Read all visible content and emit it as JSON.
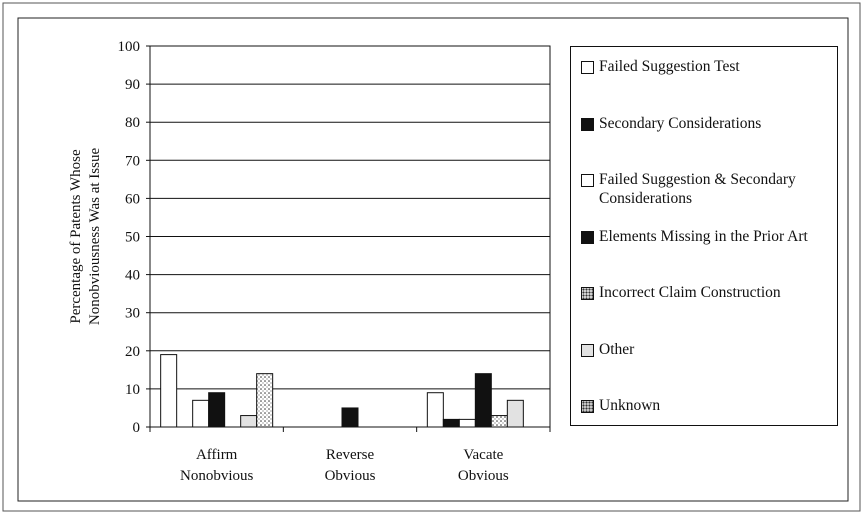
{
  "chart_data": {
    "type": "bar",
    "y_label": [
      "Percentage of Patents Whose",
      "Nonobviousness Was at Issue"
    ],
    "categories": [
      [
        "Affirm",
        "Nonobvious"
      ],
      [
        "Reverse",
        "Obvious"
      ],
      [
        "Vacate",
        "Obvious"
      ]
    ],
    "series": [
      {
        "name": "Failed Suggestion Test",
        "color": "#ffffff",
        "values": [
          19,
          0,
          9
        ]
      },
      {
        "name": "Secondary Considerations",
        "color": "#111111",
        "values": [
          0,
          0,
          2
        ]
      },
      {
        "name": "Failed Suggestion & Secondary Considerations",
        "color": "#ffffff",
        "values": [
          7,
          0,
          2
        ]
      },
      {
        "name": "Elements Missing in the Prior Art",
        "color": "#111111",
        "values": [
          9,
          5,
          14
        ]
      },
      {
        "name": "Incorrect Claim Construction",
        "color": "#d0d0d0",
        "values": [
          0,
          0,
          3
        ]
      },
      {
        "name": "Other",
        "color": "#e2e2e2",
        "values": [
          3,
          0,
          7
        ]
      },
      {
        "name": "Unknown",
        "color": "#c4c4c4",
        "values": [
          14,
          0,
          0
        ]
      }
    ],
    "ylim": [
      0,
      100
    ],
    "yticks": [
      0,
      10,
      20,
      30,
      40,
      50,
      60,
      70,
      80,
      90,
      100
    ],
    "grid": true
  }
}
